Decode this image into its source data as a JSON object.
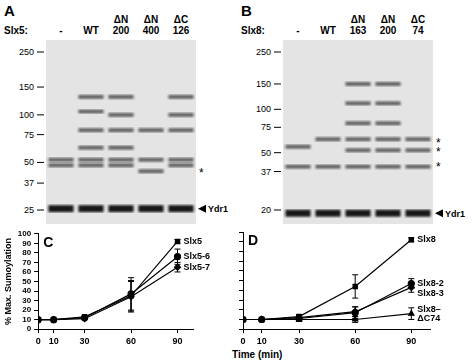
{
  "blots": [
    {
      "panel": "A",
      "protein": "Slx5:",
      "lanes": [
        "-",
        "WT",
        "ΔN 200",
        "ΔN 400",
        "ΔC 126"
      ],
      "markers": [
        250,
        150,
        100,
        75,
        50,
        37,
        25
      ],
      "bands": [
        [
          52,
          48,
          25.5
        ],
        [
          130,
          105,
          80,
          62,
          52,
          48,
          25.5
        ],
        [
          130,
          100,
          80,
          62,
          52,
          48,
          25.5
        ],
        [
          80,
          52,
          44,
          25.5
        ],
        [
          130,
          100,
          80,
          52,
          48,
          25.5
        ]
      ],
      "asterisks": [
        44
      ],
      "asterisk_label": "*",
      "arrow_label": "Ydr1",
      "arrow_kda": 25.5
    },
    {
      "panel": "B",
      "protein": "Slx8:",
      "lanes": [
        "-",
        "WT",
        "ΔN 163",
        "ΔN 200",
        "ΔC 74"
      ],
      "markers": [
        250,
        150,
        100,
        75,
        50,
        37,
        20
      ],
      "bands": [
        [
          55,
          40,
          19
        ],
        [
          62,
          40,
          19
        ],
        [
          150,
          110,
          80,
          62,
          52,
          40,
          19
        ],
        [
          150,
          110,
          80,
          62,
          52,
          40,
          19
        ],
        [
          62,
          52,
          40,
          19
        ]
      ],
      "asterisks": [
        60,
        52,
        41
      ],
      "asterisk_label": "*",
      "arrow_label": "Ydr1",
      "arrow_kda": 19
    }
  ],
  "chart_data": [
    {
      "type": "line",
      "title": "C",
      "y_label": "% Max. Sumoylation",
      "x": [
        0,
        10,
        30,
        60,
        90
      ],
      "xlim": [
        0,
        100
      ],
      "xticks": [
        0,
        10,
        30,
        60,
        90
      ],
      "ylim": [
        0,
        100
      ],
      "yticks": [
        0,
        10,
        20,
        30,
        40,
        50,
        60,
        70,
        80,
        90,
        100
      ],
      "grid": false,
      "series": [
        {
          "name": "Slx5",
          "color": "#000000",
          "marker": "square",
          "line_style": "solid",
          "values": [
            10,
            10,
            13,
            35,
            92
          ],
          "errors": [
            0,
            0,
            1,
            16,
            2
          ]
        },
        {
          "name": "Slx5-6",
          "color": "#000000",
          "marker": "circle",
          "line_style": "solid",
          "values": [
            10,
            10,
            12,
            37,
            76
          ],
          "errors": [
            0,
            0,
            1,
            17,
            8
          ]
        },
        {
          "name": "Slx5-7",
          "color": "#000000",
          "marker": "diamond",
          "line_style": "solid",
          "values": [
            10,
            10,
            11,
            34,
            65
          ],
          "errors": [
            0,
            0,
            1,
            16,
            5
          ]
        }
      ]
    },
    {
      "type": "line",
      "title": "D",
      "x_label": "Time (min)",
      "x": [
        0,
        10,
        30,
        60,
        90
      ],
      "xlim": [
        0,
        100
      ],
      "xticks": [
        0,
        10,
        30,
        60,
        90
      ],
      "ylim": [
        0,
        100
      ],
      "yticks": [
        0,
        10,
        20,
        30,
        40,
        50,
        60,
        70,
        80,
        90,
        100
      ],
      "grid": false,
      "tick_labels": "x",
      "series": [
        {
          "name": "Slx8",
          "color": "#000000",
          "marker": "square",
          "line_style": "solid",
          "values": [
            10,
            10,
            13,
            44,
            92
          ],
          "errors": [
            0,
            0,
            2,
            12,
            2
          ]
        },
        {
          "name": "Slx8-2",
          "color": "#000000",
          "marker": "circle",
          "line_style": "solid",
          "values": [
            10,
            10,
            11,
            17,
            47
          ],
          "errors": [
            0,
            0,
            3,
            6,
            5
          ]
        },
        {
          "name": "Slx8-3",
          "color": "#000000",
          "marker": "diamond",
          "line_style": "solid",
          "values": [
            10,
            10,
            12,
            18,
            43
          ],
          "errors": [
            0,
            0,
            2,
            5,
            5
          ]
        },
        {
          "name": "Slx8–ΔC74",
          "color": "#000000",
          "marker": "triangle",
          "line_style": "solid",
          "values": [
            10,
            10,
            10,
            10,
            16
          ],
          "errors": [
            0,
            0,
            2,
            3,
            6
          ]
        }
      ]
    }
  ]
}
